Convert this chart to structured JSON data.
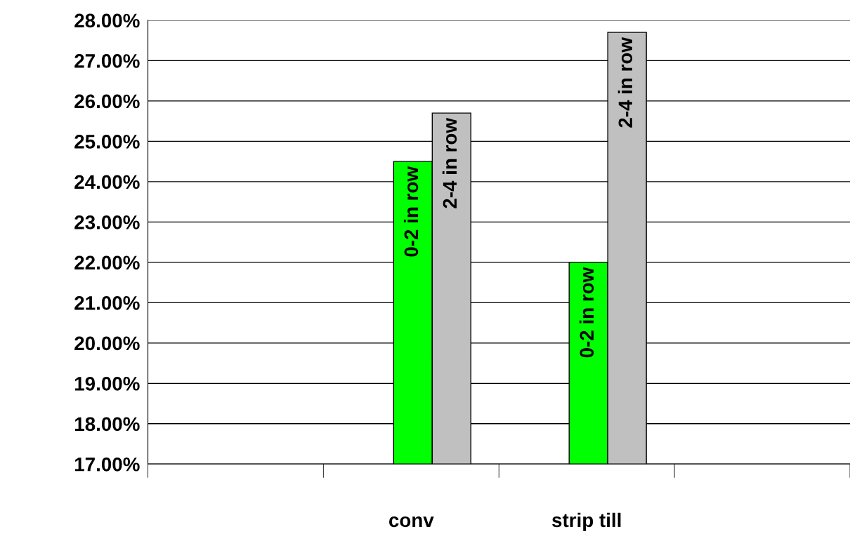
{
  "chart_data": {
    "type": "bar",
    "categories": [
      null,
      "conv",
      "strip till",
      null
    ],
    "series": [
      {
        "name": "0-2 in row",
        "color": "#00ff00",
        "values": [
          null,
          24.5,
          22.0,
          null
        ]
      },
      {
        "name": "2-4 in row",
        "color": "#c0c0c0",
        "values": [
          null,
          25.7,
          27.7,
          null
        ]
      }
    ],
    "ylim": [
      17,
      28
    ],
    "yticks": [
      {
        "value": 17,
        "label": "17.00%"
      },
      {
        "value": 18,
        "label": "18.00%"
      },
      {
        "value": 19,
        "label": "19.00%"
      },
      {
        "value": 20,
        "label": "20.00%"
      },
      {
        "value": 21,
        "label": "21.00%"
      },
      {
        "value": 22,
        "label": "22.00%"
      },
      {
        "value": 23,
        "label": "23.00%"
      },
      {
        "value": 24,
        "label": "24.00%"
      },
      {
        "value": 25,
        "label": "25.00%"
      },
      {
        "value": 26,
        "label": "26.00%"
      },
      {
        "value": 27,
        "label": "27.00%"
      },
      {
        "value": 28,
        "label": "28.00%"
      }
    ],
    "grid": "y",
    "legend": false
  }
}
